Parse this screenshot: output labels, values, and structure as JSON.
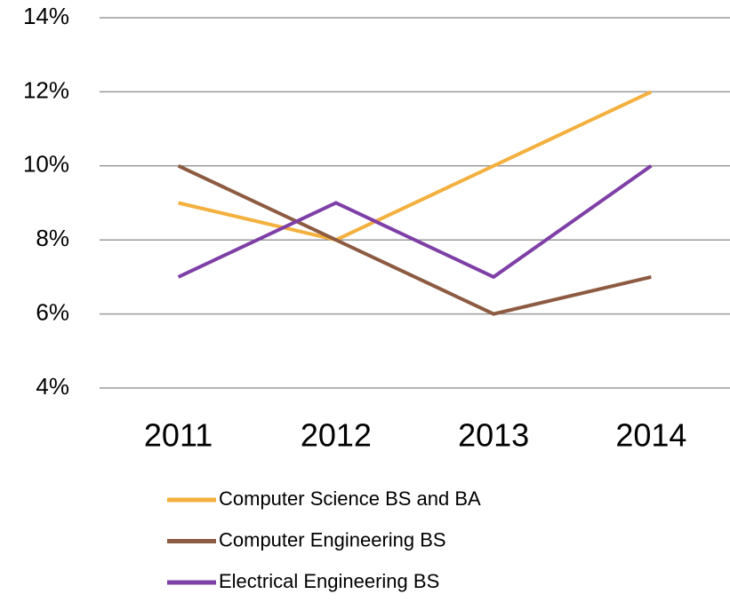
{
  "chart_data": {
    "type": "line",
    "categories": [
      "2011",
      "2012",
      "2013",
      "2014"
    ],
    "series": [
      {
        "name": "Computer Science BS and BA",
        "color": "#f4b03e",
        "values": [
          9,
          8,
          10,
          12
        ]
      },
      {
        "name": "Computer Engineering BS",
        "color": "#8c5b42",
        "values": [
          10,
          8,
          6,
          7
        ]
      },
      {
        "name": "Electrical Engineering BS",
        "color": "#7e3fa6",
        "values": [
          7,
          9,
          7,
          10
        ]
      }
    ],
    "ylim": [
      4,
      14
    ],
    "yticks": [
      {
        "value": 4,
        "label": "4%"
      },
      {
        "value": 6,
        "label": "6%"
      },
      {
        "value": 8,
        "label": "8%"
      },
      {
        "value": 10,
        "label": "10%"
      },
      {
        "value": 12,
        "label": "12%"
      },
      {
        "value": 14,
        "label": "14%"
      }
    ],
    "grid": true,
    "legend": "bottom"
  }
}
